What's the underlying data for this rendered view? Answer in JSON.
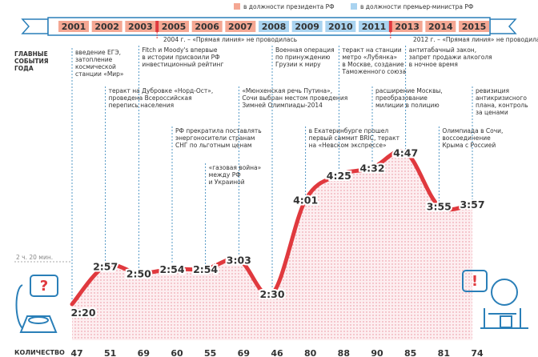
{
  "chart_data": {
    "type": "line",
    "legend": [
      {
        "name": "в должности президента РФ",
        "color": "#f4a793"
      },
      {
        "name": "в должности премьер-министра РФ",
        "color": "#a9d3f0"
      }
    ],
    "categories": [
      "2001",
      "2002",
      "2003",
      "2005",
      "2006",
      "2007",
      "2008",
      "2009",
      "2010",
      "2011",
      "2013",
      "2014",
      "2015"
    ],
    "category_colors": [
      "#f4a793",
      "#f4a793",
      "#f4a793",
      "#f4a793",
      "#f4a793",
      "#f4a793",
      "#a9d3f0",
      "#a9d3f0",
      "#a9d3f0",
      "#a9d3f0",
      "#f4a793",
      "#f4a793",
      "#f4a793"
    ],
    "notes": [
      "2004 г. – «Прямая линия» не проводилась",
      "2012 г. – «Прямая линия» не проводилась"
    ],
    "events_title": [
      "ГЛАВНЫЕ",
      "СОБЫТИЯ",
      "ГОДА"
    ],
    "events": [
      [
        "введение ЕГЭ,",
        "затопление",
        "космической",
        "станции «Мир»"
      ],
      [
        "теракт на Дубровке «Норд-Ост»,",
        "проведена Всероссийская",
        "перепись населения"
      ],
      [
        "Fitch и Moody's впервые",
        "в истории присвоили РФ",
        "инвестиционный рейтинг"
      ],
      [
        "РФ прекратила поставлять",
        "энергоносители странам",
        "СНГ по льготным ценам"
      ],
      [
        "«газовая война»",
        "между РФ",
        "и Украиной"
      ],
      [
        "«Мюнхенская речь Путина»,",
        "Сочи выбран местом проведения",
        "Зимней Олимпиады-2014"
      ],
      [
        "Военная операция",
        "по принуждению",
        "Грузии к миру"
      ],
      [
        "в Екатеринбурге прошел",
        "первый саммит BRIC, теракт",
        "на «Невском экспрессе»"
      ],
      [
        "теракт на станции",
        "метро «Лубянка»",
        "в Москве, создание",
        "Таможенного союза"
      ],
      [
        "расширение Москвы,",
        "преобразование",
        "милиции в полицию"
      ],
      [
        "антитабачный закон,",
        "запрет продажи алкоголя",
        "в ночное время"
      ],
      [
        "Олимпиада в Сочи,",
        "воссоединение",
        "Крыма с Россией"
      ],
      [
        "ревизиция",
        "антикризисного",
        "плана, контроль",
        "за ценами"
      ]
    ],
    "reference_label": "2 ч. 20 мин.",
    "values": [
      140,
      177,
      170,
      174,
      174,
      183,
      150,
      241,
      265,
      272,
      287,
      235,
      237
    ],
    "value_labels": [
      "2:20",
      "2:57",
      "2:50",
      "2:54",
      "2:54",
      "3:03",
      "2:30",
      "4:01",
      "4:25",
      "4:32",
      "4:47",
      "3:55",
      "3:57"
    ],
    "color": "#e0393e",
    "counts_label": "КОЛИЧЕСТВО",
    "counts": [
      47,
      51,
      69,
      60,
      55,
      69,
      46,
      80,
      88,
      90,
      85,
      81,
      74
    ]
  }
}
